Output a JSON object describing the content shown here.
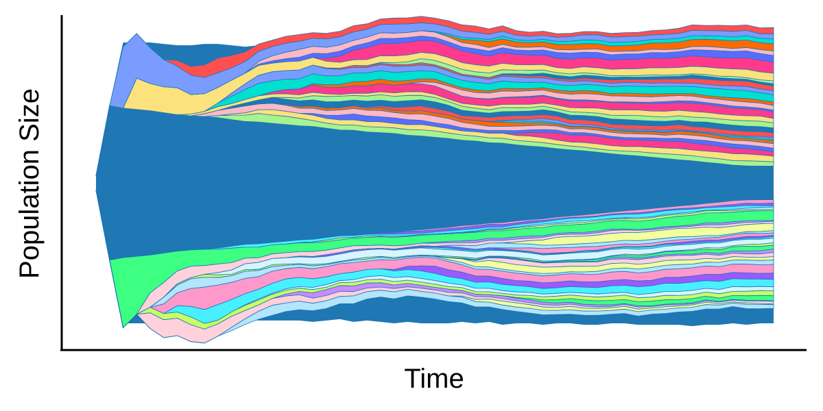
{
  "chart_data": {
    "type": "area",
    "subtype": "streamgraph (fish plot of clone sub-populations, centered baseline)",
    "title": "",
    "xlabel": "Time",
    "ylabel": "Population Size",
    "x_ticks_shown": false,
    "y_ticks_shown": false,
    "grid": false,
    "legend": "none",
    "x": [
      0,
      1,
      2,
      3,
      4,
      5,
      6,
      7,
      8,
      9,
      10,
      11,
      12,
      13,
      14,
      15,
      16,
      17,
      18,
      19,
      20,
      21,
      22,
      23,
      24,
      25,
      26,
      27,
      28,
      29,
      30,
      31,
      32,
      33,
      34,
      35,
      36,
      37,
      38,
      39,
      40,
      41,
      42,
      43,
      44,
      45,
      46,
      47,
      48,
      49,
      50
    ],
    "total_population": [
      0.05,
      0.55,
      1.0,
      1.0,
      1.0,
      0.99,
      0.98,
      0.98,
      0.99,
      0.99,
      0.98,
      0.97,
      0.98,
      0.98,
      0.98,
      0.98,
      0.99,
      0.98,
      0.97,
      0.99,
      0.98,
      0.99,
      1.0,
      0.99,
      1.0,
      1.0,
      1.0,
      0.99,
      1.0,
      0.99,
      1.01,
      1.0,
      1.0,
      1.01,
      1.0,
      1.0,
      1.01,
      1.01,
      1.0,
      1.0,
      1.01,
      1.01,
      1.01,
      1.01,
      1.02,
      1.01,
      1.01,
      1.0,
      1.01,
      1.0,
      1.0
    ],
    "ylim": [
      -0.6,
      0.6
    ],
    "series_count": 60,
    "series_colors": [
      "#1f77b4",
      "#ff99cc",
      "#a6f38f",
      "#9b59ff",
      "#fbe27c",
      "#48f0ff",
      "#ff3a8c",
      "#d7f4ff",
      "#5c6bff",
      "#c7ff66",
      "#ffb9c6",
      "#3dff82",
      "#ff6a00",
      "#c88cff",
      "#00e0d0",
      "#ffd1dc",
      "#7a9cff",
      "#f2ff9e",
      "#ff4f4f",
      "#b3e5fc"
    ]
  }
}
